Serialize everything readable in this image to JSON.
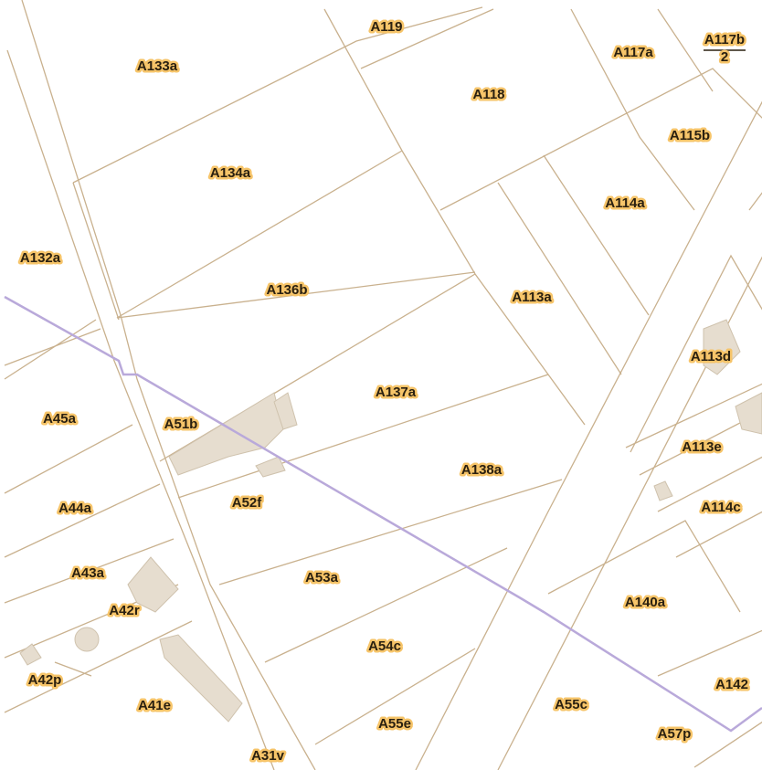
{
  "parcels": [
    {
      "label": "A119"
    },
    {
      "label": "A133a"
    },
    {
      "label": "A117a"
    },
    {
      "label": "A117b",
      "sublabel": "2"
    },
    {
      "label": "A118"
    },
    {
      "label": "A115b"
    },
    {
      "label": "A134a"
    },
    {
      "label": "A114a"
    },
    {
      "label": "A132a"
    },
    {
      "label": "A136b"
    },
    {
      "label": "A113a"
    },
    {
      "label": "A113d"
    },
    {
      "label": "A137a"
    },
    {
      "label": "A45a"
    },
    {
      "label": "A51b"
    },
    {
      "label": "A113e"
    },
    {
      "label": "A138a"
    },
    {
      "label": "A52f"
    },
    {
      "label": "A44a"
    },
    {
      "label": "A114c"
    },
    {
      "label": "A43a"
    },
    {
      "label": "A53a"
    },
    {
      "label": "A42r"
    },
    {
      "label": "A140a"
    },
    {
      "label": "A54c"
    },
    {
      "label": "A42p"
    },
    {
      "label": "A142"
    },
    {
      "label": "A41e"
    },
    {
      "label": "A55c"
    },
    {
      "label": "A55e"
    },
    {
      "label": "A57p"
    },
    {
      "label": "A31v"
    }
  ]
}
